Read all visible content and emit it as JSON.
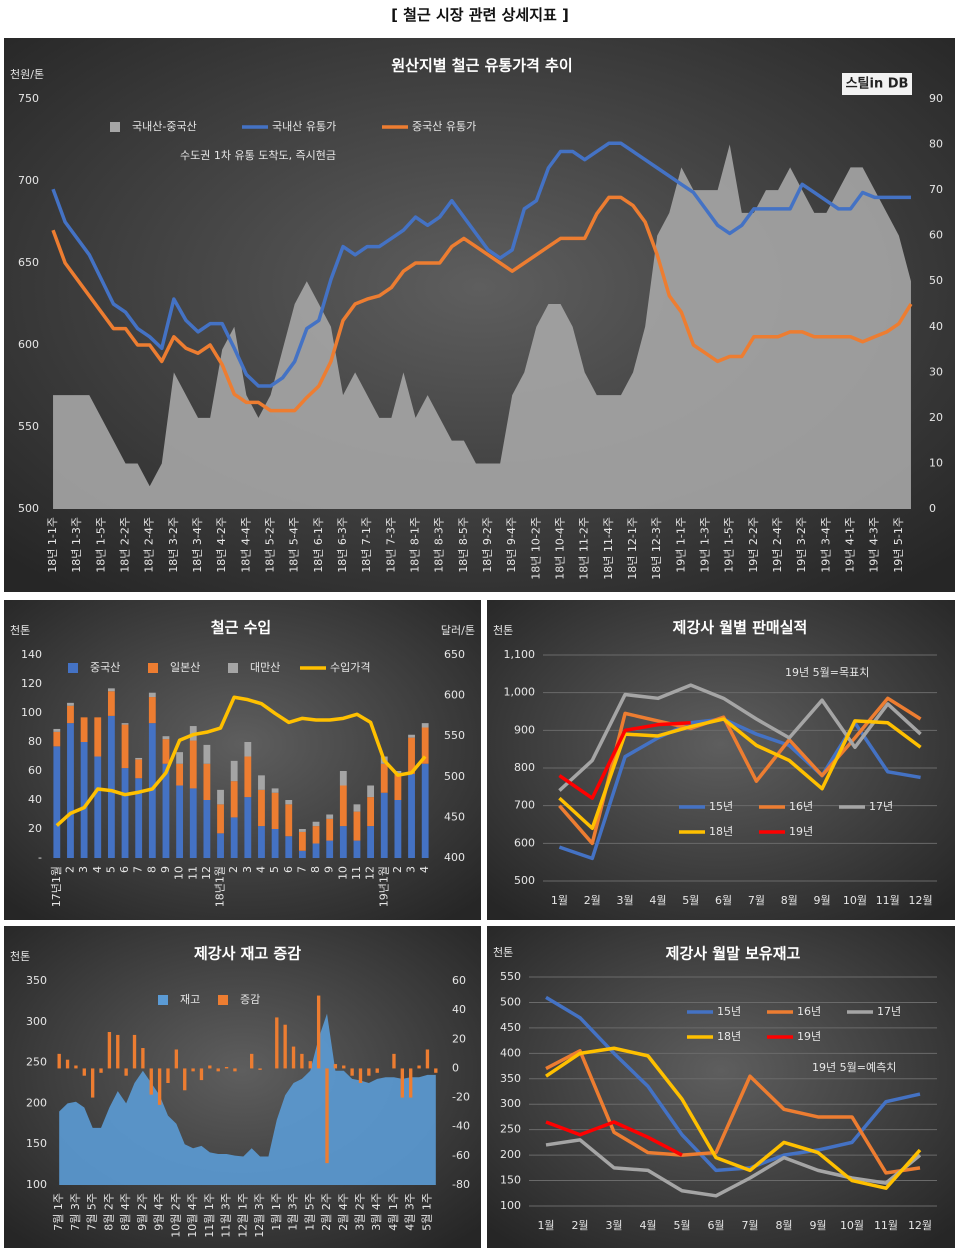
{
  "header": "[ 철근 시장 관련 상세지표 ]",
  "chart_data": [
    {
      "type": "combo",
      "title": "원산지별 철근 유통가격 추이",
      "subtitle": "수도권 1차 유통 도착도, 즉시현금",
      "logo": "스틸in DB",
      "y_label": "천원/톤",
      "legend": "top-left",
      "grid": false,
      "categories": [
        "18년 1-1주",
        null,
        "18년 1-3주",
        null,
        "18년 1-5주",
        null,
        "18년 2-2주",
        null,
        "18년 2-4주",
        null,
        "18년 3-2주",
        null,
        "18년 3-4주",
        null,
        "18년 4-2주",
        null,
        "18년 4-4주",
        null,
        "18년 5-2주",
        null,
        "18년 5-4주",
        null,
        "18년 6-1주",
        null,
        "18년 6-3주",
        null,
        "18년 7-1주",
        null,
        "18년 7-3주",
        null,
        "18년 8-1주",
        null,
        "18년 8-3주",
        null,
        "18년 8-5주",
        null,
        "18년 9-2주",
        null,
        "18년 9-4주",
        null,
        "18년 10-2주",
        null,
        "18년 10-4주",
        null,
        "18년 11-2주",
        null,
        "18년 11-4주",
        null,
        "18년 12-1주",
        null,
        "18년 12-3주",
        null,
        "19년 1-1주",
        null,
        "19년 1-3주",
        null,
        "19년 1-5주",
        null,
        "19년 2-2주",
        null,
        "19년 2-4주",
        null,
        "19년 3-2주",
        null,
        "19년 3-4주",
        null,
        "19년 4-1주",
        null,
        "19년 4-3주",
        null,
        "19년 5-1주",
        null
      ],
      "ylim": [
        500,
        750
      ],
      "yticks": [
        500,
        550,
        600,
        650,
        700,
        750
      ],
      "y2lim": [
        0,
        90
      ],
      "y2ticks": [
        0,
        10,
        20,
        30,
        40,
        50,
        60,
        70,
        80,
        90
      ],
      "series": [
        {
          "name": "국내산-중국산",
          "kind": "area",
          "axis": "y2",
          "color": "#a6a6a6",
          "values": [
            25,
            25,
            25,
            25,
            20,
            15,
            10,
            10,
            5,
            10,
            30,
            25,
            20,
            20,
            35,
            40,
            25,
            20,
            25,
            35,
            45,
            50,
            45,
            40,
            25,
            30,
            25,
            20,
            20,
            30,
            20,
            25,
            20,
            15,
            15,
            10,
            10,
            10,
            25,
            30,
            40,
            45,
            45,
            40,
            30,
            25,
            25,
            25,
            30,
            40,
            60,
            65,
            75,
            70,
            70,
            70,
            80,
            65,
            65,
            70,
            70,
            75,
            70,
            65,
            65,
            70,
            75,
            75,
            70,
            65,
            60,
            50
          ]
        },
        {
          "name": "국내산 유통가",
          "kind": "line",
          "color": "#4472c4",
          "values": [
            695,
            675,
            665,
            655,
            640,
            625,
            620,
            610,
            605,
            598,
            628,
            615,
            608,
            613,
            613,
            598,
            582,
            575,
            575,
            580,
            590,
            610,
            615,
            640,
            660,
            655,
            660,
            660,
            665,
            670,
            678,
            673,
            678,
            688,
            678,
            668,
            658,
            653,
            658,
            683,
            688,
            708,
            718,
            718,
            713,
            718,
            723,
            723,
            718,
            713,
            708,
            703,
            698,
            693,
            683,
            673,
            668,
            673,
            683,
            683,
            683,
            683,
            698,
            693,
            688,
            683,
            683,
            693,
            690,
            690,
            690,
            690
          ]
        },
        {
          "name": "중국산 유통가",
          "kind": "line",
          "color": "#ed7d31",
          "values": [
            670,
            650,
            640,
            630,
            620,
            610,
            610,
            600,
            600,
            590,
            605,
            598,
            595,
            600,
            588,
            570,
            565,
            565,
            560,
            560,
            560,
            568,
            575,
            590,
            615,
            625,
            628,
            630,
            635,
            645,
            650,
            650,
            650,
            660,
            665,
            660,
            655,
            650,
            645,
            650,
            655,
            660,
            665,
            665,
            665,
            680,
            690,
            690,
            685,
            675,
            655,
            630,
            620,
            600,
            595,
            590,
            593,
            593,
            605,
            605,
            605,
            608,
            608,
            605,
            605,
            605,
            605,
            602,
            605,
            608,
            613,
            625
          ]
        }
      ]
    },
    {
      "type": "combo",
      "title": "철근 수입",
      "y_label": "천톤",
      "y2_label": "달러/톤",
      "legend": "top-left",
      "grid": false,
      "categories": [
        "17년1월",
        "2",
        "3",
        "4",
        "5",
        "6",
        "7",
        "8",
        "9",
        "10",
        "11",
        "12",
        "18년1월",
        "2",
        "3",
        "4",
        "5",
        "6",
        "7",
        "8",
        "9",
        "10",
        "11",
        "12",
        "19년1월",
        "2",
        "3",
        "4"
      ],
      "ylim": [
        0,
        140
      ],
      "yticks": [
        {
          "value": 0,
          "label": "-"
        },
        20,
        40,
        60,
        80,
        100,
        120,
        140
      ],
      "y2lim": [
        400,
        650
      ],
      "y2ticks": [
        400,
        450,
        500,
        550,
        600,
        650
      ],
      "series": [
        {
          "name": "중국산",
          "kind": "bar",
          "color": "#4472c4",
          "values": [
            77,
            93,
            80,
            70,
            98,
            62,
            55,
            93,
            65,
            50,
            48,
            40,
            17,
            28,
            42,
            22,
            20,
            15,
            5,
            10,
            12,
            22,
            12,
            22,
            45,
            40,
            58,
            65
          ]
        },
        {
          "name": "일본산",
          "kind": "bar",
          "color": "#ed7d31",
          "values": [
            10,
            12,
            17,
            27,
            17,
            30,
            13,
            18,
            17,
            15,
            33,
            25,
            20,
            25,
            28,
            25,
            25,
            22,
            13,
            12,
            15,
            28,
            20,
            20,
            20,
            18,
            25,
            25
          ]
        },
        {
          "name": "대만산",
          "kind": "bar",
          "color": "#a5a5a5",
          "values": [
            2,
            2,
            0,
            0,
            2,
            1,
            1,
            3,
            2,
            8,
            10,
            13,
            10,
            14,
            10,
            10,
            3,
            3,
            2,
            3,
            3,
            10,
            5,
            8,
            5,
            2,
            2,
            3
          ]
        },
        {
          "name": "수입가격",
          "kind": "line",
          "axis": "y2",
          "color": "#ffc000",
          "values": [
            440,
            455,
            462,
            485,
            483,
            478,
            481,
            485,
            505,
            545,
            552,
            555,
            560,
            598,
            595,
            590,
            578,
            567,
            572,
            570,
            570,
            572,
            577,
            567,
            520,
            502,
            505,
            525
          ]
        }
      ]
    },
    {
      "type": "line",
      "title": "제강사 월별 판매실적",
      "y_label": "천톤",
      "annotation": "19년 5월=목표치",
      "legend": "bottom-right",
      "grid": true,
      "categories": [
        "1월",
        "2월",
        "3월",
        "4월",
        "5월",
        "6월",
        "7월",
        "8월",
        "9월",
        "10월",
        "11월",
        "12월"
      ],
      "ylim": [
        500,
        1100
      ],
      "yticks": [
        500,
        600,
        700,
        800,
        900,
        {
          "value": 1000,
          "label": "1,000"
        },
        {
          "value": 1100,
          "label": "1,100"
        }
      ],
      "series": [
        {
          "name": "15년",
          "kind": "line",
          "color": "#4472c4",
          "values": [
            590,
            560,
            830,
            880,
            920,
            930,
            890,
            860,
            780,
            920,
            790,
            775
          ]
        },
        {
          "name": "16년",
          "kind": "line",
          "color": "#ed7d31",
          "values": [
            700,
            600,
            945,
            925,
            905,
            935,
            765,
            875,
            780,
            880,
            985,
            930
          ]
        },
        {
          "name": "17년",
          "kind": "line",
          "color": "#a5a5a5",
          "values": [
            740,
            820,
            995,
            985,
            1020,
            985,
            930,
            880,
            980,
            855,
            970,
            890
          ]
        },
        {
          "name": "18년",
          "kind": "line",
          "color": "#ffc000",
          "values": [
            720,
            640,
            890,
            885,
            910,
            930,
            860,
            820,
            745,
            925,
            920,
            855
          ]
        },
        {
          "name": "19년",
          "kind": "line",
          "color": "#ff0000",
          "values": [
            780,
            720,
            900,
            915,
            920,
            null,
            null,
            null,
            null,
            null,
            null,
            null
          ]
        }
      ]
    },
    {
      "type": "combo",
      "title": "제강사 재고 증감",
      "y_label": "천톤",
      "legend": "top-left",
      "grid": false,
      "categories": [
        "7월 1주",
        null,
        "7월 3주",
        null,
        "7월 5주",
        null,
        "8월 2주",
        null,
        "8월 4주",
        null,
        "9월 2주",
        null,
        "9월 4주",
        null,
        "10월 2주",
        null,
        "10월 4주",
        null,
        "11월 1주",
        null,
        "11월 3주",
        null,
        "12월 1주",
        null,
        "12월 3주",
        null,
        "1월 1주",
        null,
        "1월 3주",
        null,
        "1월 5주",
        null,
        "2월 2주",
        null,
        "2월 4주",
        null,
        "3월 2주",
        null,
        "3월 4주",
        null,
        "4월 1주",
        null,
        "4월 3주",
        null,
        "5월 1주",
        null
      ],
      "ylim": [
        100,
        350
      ],
      "yticks": [
        100,
        150,
        200,
        250,
        300,
        350
      ],
      "y2lim": [
        -80,
        60
      ],
      "y2ticks": [
        -80,
        -60,
        -40,
        -20,
        0,
        20,
        40,
        60
      ],
      "series": [
        {
          "name": "재고",
          "kind": "area",
          "color": "#5b9bd5",
          "values": [
            190,
            200,
            202,
            195,
            170,
            170,
            195,
            215,
            200,
            225,
            240,
            225,
            210,
            185,
            175,
            150,
            145,
            148,
            140,
            138,
            138,
            136,
            135,
            145,
            135,
            135,
            180,
            210,
            225,
            230,
            240,
            280,
            310,
            240,
            240,
            230,
            228,
            225,
            230,
            232,
            232,
            230,
            232,
            232,
            235,
            235
          ]
        },
        {
          "name": "증감",
          "kind": "bar",
          "axis": "y2",
          "color": "#ed7d31",
          "values": [
            10,
            6,
            2,
            -5,
            -20,
            -3,
            25,
            23,
            -5,
            23,
            14,
            -18,
            -25,
            -10,
            13,
            -15,
            -2,
            -8,
            2,
            -2,
            1,
            -2,
            0,
            10,
            -1,
            0,
            35,
            30,
            15,
            10,
            5,
            50,
            -65,
            3,
            2,
            -5,
            -10,
            -5,
            -3,
            0,
            10,
            -20,
            -20,
            2,
            13,
            -3
          ]
        }
      ]
    },
    {
      "type": "line",
      "title": "제강사 월말 보유재고",
      "y_label": "천톤",
      "annotation": "19년 5월=예측치",
      "legend": "top-right",
      "grid": true,
      "categories": [
        "1월",
        "2월",
        "3월",
        "4월",
        "5월",
        "6월",
        "7월",
        "8월",
        "9월",
        "10월",
        "11월",
        "12월"
      ],
      "ylim": [
        100,
        550
      ],
      "yticks": [
        100,
        150,
        200,
        250,
        300,
        350,
        400,
        450,
        500,
        550
      ],
      "series": [
        {
          "name": "15년",
          "kind": "line",
          "color": "#4472c4",
          "values": [
            510,
            470,
            400,
            335,
            240,
            170,
            175,
            200,
            210,
            225,
            305,
            320
          ]
        },
        {
          "name": "16년",
          "kind": "line",
          "color": "#ed7d31",
          "values": [
            370,
            405,
            245,
            205,
            200,
            205,
            355,
            290,
            275,
            275,
            165,
            175
          ]
        },
        {
          "name": "17년",
          "kind": "line",
          "color": "#a5a5a5",
          "values": [
            220,
            230,
            175,
            170,
            130,
            120,
            155,
            195,
            170,
            155,
            145,
            200
          ]
        },
        {
          "name": "18년",
          "kind": "line",
          "color": "#ffc000",
          "values": [
            355,
            400,
            410,
            395,
            310,
            195,
            170,
            225,
            205,
            150,
            135,
            210
          ]
        },
        {
          "name": "19년",
          "kind": "line",
          "color": "#ff0000",
          "values": [
            265,
            240,
            265,
            235,
            200,
            null,
            null,
            null,
            null,
            null,
            null,
            null
          ]
        }
      ]
    }
  ]
}
